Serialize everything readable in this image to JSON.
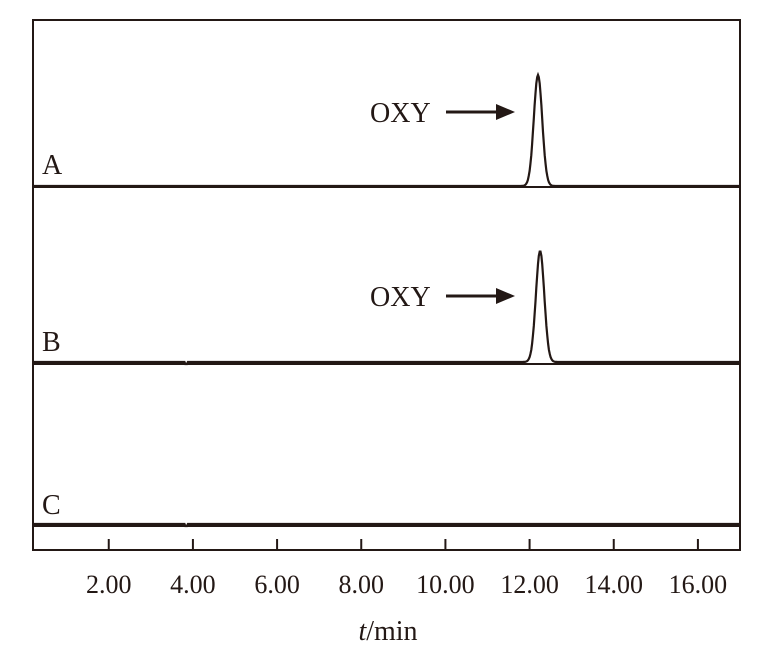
{
  "chart_data": {
    "type": "line",
    "xlabel_italic": "t",
    "xlabel_unit": "/min",
    "xlim": [
      0.2,
      17.0
    ],
    "x_ticks": [
      2,
      4,
      6,
      8,
      10,
      12,
      14,
      16
    ],
    "x_tick_labels": [
      "2.00",
      "4.00",
      "6.00",
      "8.00",
      "10.00",
      "12.00",
      "14.00",
      "16.00"
    ],
    "grid": false,
    "series": [
      {
        "name": "A",
        "peak_label": "OXY",
        "peak_x": 12.2,
        "peak_sigma": 0.1,
        "has_peak": true
      },
      {
        "name": "B",
        "peak_label": "OXY",
        "peak_x": 12.25,
        "peak_sigma": 0.1,
        "has_peak": true,
        "glitch_x": 3.85
      },
      {
        "name": "C",
        "peak_label": "",
        "has_peak": false,
        "glitch_x": 3.85
      }
    ],
    "colors": {
      "line": "#231815",
      "frame": "#231815"
    }
  }
}
